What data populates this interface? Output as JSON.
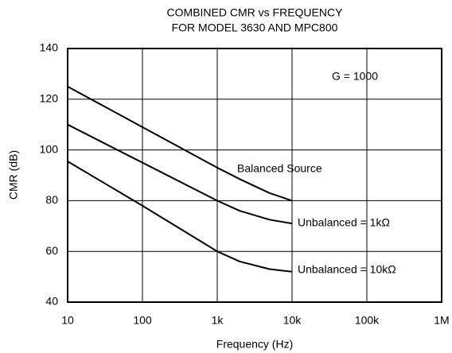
{
  "chart_data": {
    "type": "line",
    "title": "COMBINED CMR vs FREQUENCY",
    "subtitle": "FOR MODEL 3630 AND MPC800",
    "x_label": "Frequency (Hz)",
    "y_label": "CMR (dB)",
    "x_scale": "log",
    "grid": true,
    "xlim": [
      10,
      1000000
    ],
    "xticks": [
      10,
      100,
      {
        "value": 1000,
        "label": "1k"
      },
      {
        "value": 10000,
        "label": "10k"
      },
      {
        "value": 100000,
        "label": "100k"
      },
      {
        "value": 1000000,
        "label": "1M"
      }
    ],
    "ylim": [
      40,
      140
    ],
    "yticks": [
      40,
      60,
      80,
      100,
      120,
      140
    ],
    "x": [
      10,
      100,
      1000,
      2000,
      5000,
      10000
    ],
    "series": [
      {
        "name": "Balanced Source",
        "color": "#000000",
        "values": [
          125,
          109,
          93,
          88.5,
          83,
          80
        ]
      },
      {
        "name": "Unbalanced = 1kΩ",
        "color": "#000000",
        "values": [
          110,
          95,
          80,
          76,
          72.5,
          71
        ]
      },
      {
        "name": "Unbalanced = 10kΩ",
        "color": "#000000",
        "values": [
          95.5,
          78,
          60,
          56,
          53,
          52
        ]
      }
    ],
    "annotations": [
      "G = 1000"
    ]
  }
}
